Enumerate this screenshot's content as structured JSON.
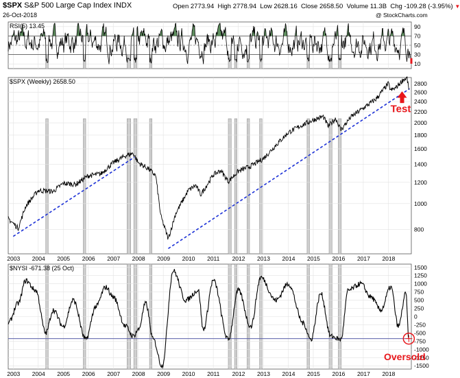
{
  "header": {
    "symbol": "$SPX",
    "name": "S&P 500 Large Cap Index",
    "exchange": "INDX",
    "date": "26-Oct-2018",
    "open_label": "Open",
    "open": "2773.94",
    "high_label": "High",
    "high": "2778.94",
    "low_label": "Low",
    "low": "2628.16",
    "close_label": "Close",
    "close": "2658.50",
    "volume_label": "Volume",
    "volume": "11.3B",
    "chg_label": "Chg",
    "chg": "-109.28 (-3.95%)",
    "chg_arrow": "▼",
    "watermark": "@ StockCharts.com"
  },
  "colors": {
    "price_line": "#000000",
    "trendline": "#1a2fd6",
    "shade": "#cfcfcf",
    "shade_edge": "#8a8a8a",
    "annotation": "#e8161b",
    "rsi_fill": "#5f8f5f",
    "grid": "#e2e2e2",
    "hline": "#5a5fa8"
  },
  "annotations": {
    "test": "Test",
    "oversold": "Oversold"
  },
  "chart_data": [
    {
      "type": "line",
      "title": "RSI(5) 13.45",
      "ylim": [
        0,
        100
      ],
      "yticks": [
        "90",
        "70",
        "50",
        "30",
        "10"
      ],
      "reference_lines": [
        70,
        50,
        30
      ],
      "ylabel": "",
      "xlabel": "",
      "grid": true,
      "note": "weekly RSI(5) oscillating between ~10 and ~95; areas above 70 shaded green; latest 13.45"
    },
    {
      "type": "line",
      "title": "$SPX (Weekly) 2658.50",
      "scale": "log",
      "ylim": [
        650,
        2950
      ],
      "yticks": [
        "2800",
        "2600",
        "2400",
        "2200",
        "2000",
        "1800",
        "1600",
        "1400",
        "1200",
        "1000",
        "800"
      ],
      "x": [
        "2002.8",
        "2003.2",
        "2003.5",
        "2004.0",
        "2004.6",
        "2005.0",
        "2005.5",
        "2006.0",
        "2006.5",
        "2007.0",
        "2007.5",
        "2007.8",
        "2008.0",
        "2008.4",
        "2008.7",
        "2008.9",
        "2009.2",
        "2009.5",
        "2010.0",
        "2010.3",
        "2010.5",
        "2011.0",
        "2011.3",
        "2011.6",
        "2012.0",
        "2012.5",
        "2013.0",
        "2013.5",
        "2014.0",
        "2014.5",
        "2015.0",
        "2015.4",
        "2015.6",
        "2015.9",
        "2016.1",
        "2016.5",
        "2017.0",
        "2017.5",
        "2018.0",
        "2018.1",
        "2018.3",
        "2018.6",
        "2018.75",
        "2018.82"
      ],
      "values": [
        880,
        810,
        980,
        1120,
        1110,
        1190,
        1180,
        1270,
        1290,
        1420,
        1510,
        1540,
        1420,
        1350,
        1270,
        900,
        740,
        920,
        1120,
        1170,
        1080,
        1280,
        1330,
        1210,
        1320,
        1380,
        1470,
        1650,
        1840,
        1950,
        2050,
        2110,
        1940,
        2080,
        1880,
        2100,
        2270,
        2450,
        2800,
        2640,
        2700,
        2900,
        2930,
        2658
      ],
      "xticks": [
        "2003",
        "2004",
        "2005",
        "2006",
        "2007",
        "2008",
        "2009",
        "2010",
        "2011",
        "2012",
        "2013",
        "2014",
        "2015",
        "2016",
        "2017",
        "2018"
      ],
      "trendlines": [
        {
          "x": [
            2003.0,
            2007.85
          ],
          "y": [
            755,
            1490
          ]
        },
        {
          "x": [
            2009.2,
            2018.85
          ],
          "y": [
            680,
            2680
          ]
        }
      ],
      "ylabel": "",
      "xlabel": "",
      "grid": true
    },
    {
      "type": "line",
      "title": "$NYSI -671.38 (25 Oct)",
      "ylim": [
        -1600,
        1600
      ],
      "yticks": [
        "1500",
        "1250",
        "1000",
        "750",
        "500",
        "250",
        "0",
        "-250",
        "-500",
        "-750",
        "-1000",
        "-1250",
        "-1500"
      ],
      "x": [
        "2002.8",
        "2003.2",
        "2003.5",
        "2003.9",
        "2004.3",
        "2004.6",
        "2005.0",
        "2005.4",
        "2005.9",
        "2006.3",
        "2006.7",
        "2007.0",
        "2007.5",
        "2007.8",
        "2008.0",
        "2008.3",
        "2008.6",
        "2008.95",
        "2009.4",
        "2009.9",
        "2010.4",
        "2010.6",
        "2011.0",
        "2011.6",
        "2012.0",
        "2012.5",
        "2012.9",
        "2013.5",
        "2014.0",
        "2014.6",
        "2014.9",
        "2015.3",
        "2015.7",
        "2016.1",
        "2016.4",
        "2016.9",
        "2017.3",
        "2017.7",
        "2018.1",
        "2018.4",
        "2018.7",
        "2018.82"
      ],
      "values": [
        -200,
        400,
        1100,
        800,
        -500,
        200,
        -300,
        500,
        -700,
        300,
        900,
        600,
        -300,
        -600,
        -400,
        400,
        -700,
        -1500,
        1400,
        500,
        800,
        -400,
        1100,
        -700,
        800,
        -300,
        1200,
        500,
        1000,
        -200,
        -700,
        700,
        -600,
        -700,
        800,
        1000,
        600,
        200,
        900,
        -300,
        700,
        -671
      ],
      "reference_lines": [
        -671
      ],
      "xticks": [
        "2003",
        "2004",
        "2005",
        "2006",
        "2007",
        "2008",
        "2009",
        "2010",
        "2011",
        "2012",
        "2013",
        "2014",
        "2015",
        "2016",
        "2017",
        "2018"
      ],
      "ylabel": "",
      "xlabel": "",
      "grid": true
    }
  ],
  "shaded_periods": [
    [
      2004.3,
      2004.4
    ],
    [
      2005.8,
      2005.9
    ],
    [
      2007.55,
      2007.7
    ],
    [
      2007.82,
      2007.95
    ],
    [
      2008.45,
      2008.55
    ],
    [
      2011.6,
      2011.72
    ],
    [
      2011.85,
      2011.95
    ],
    [
      2012.35,
      2012.45
    ],
    [
      2012.85,
      2012.95
    ],
    [
      2014.75,
      2014.85
    ],
    [
      2015.63,
      2015.75
    ],
    [
      2016.0,
      2016.12
    ]
  ]
}
